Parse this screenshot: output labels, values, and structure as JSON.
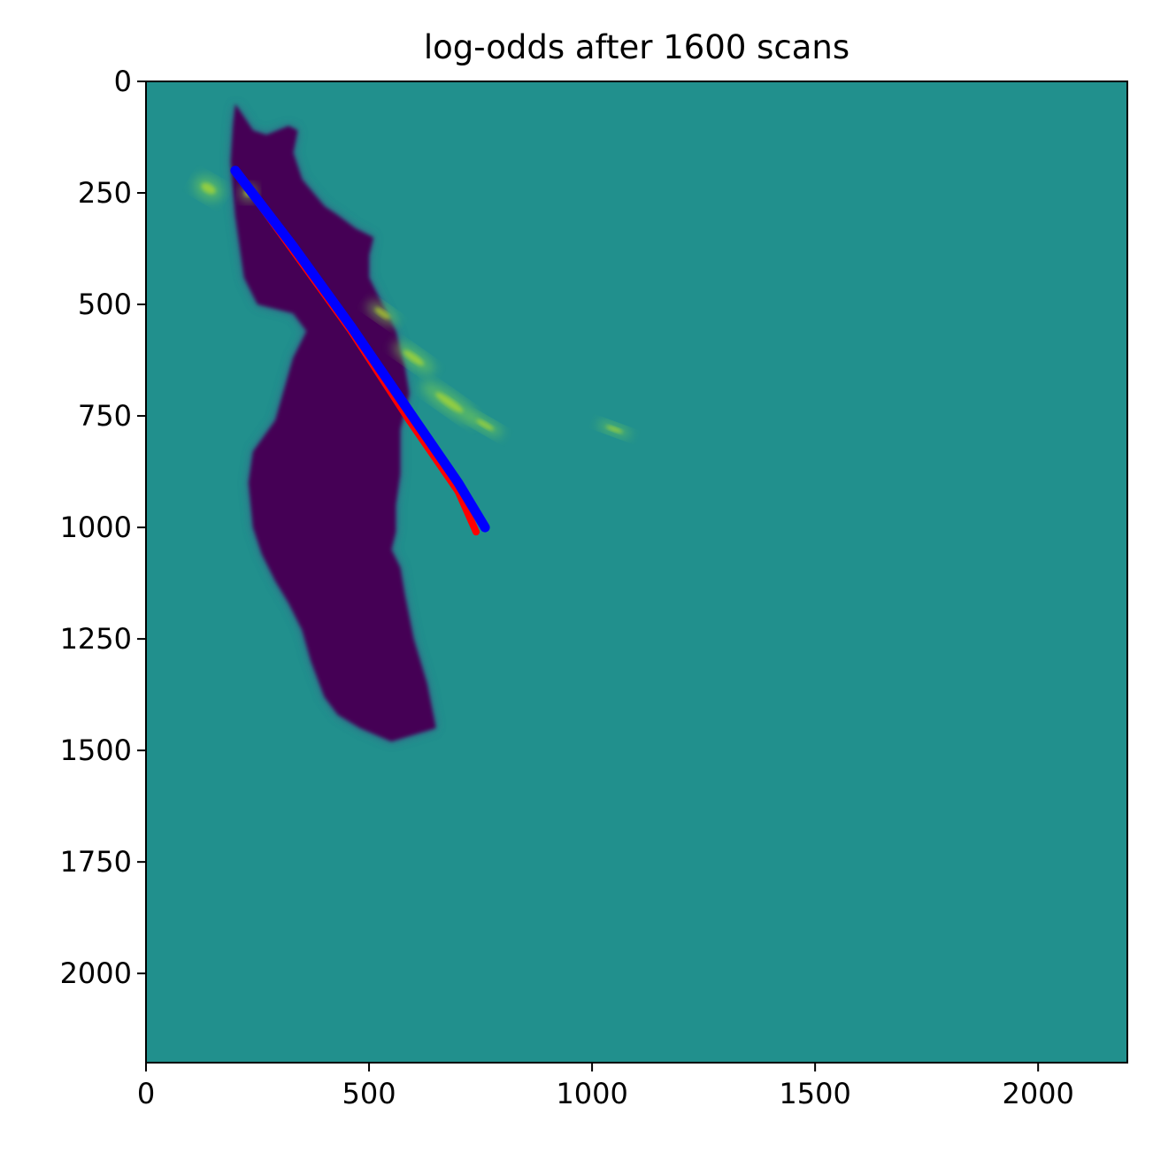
{
  "chart_data": {
    "type": "heatmap",
    "title": "log-odds after 1600 scans",
    "xlabel": "",
    "ylabel": "",
    "xlim": [
      0,
      2200
    ],
    "ylim": [
      2200,
      0
    ],
    "y_axis_inverted": true,
    "x_ticks": [
      0,
      500,
      1000,
      1500,
      2000
    ],
    "y_ticks": [
      0,
      250,
      500,
      750,
      1000,
      1250,
      1500,
      1750,
      2000
    ],
    "colormap": "viridis",
    "grid": false,
    "legend": "none",
    "colors": {
      "unknown": "#21908d",
      "free": "#440154",
      "free_edge": "#3b5288",
      "occupied": "#7ad151",
      "occupied_strong": "#bddf26",
      "path_estimated": "#0000ff",
      "path_reference": "#ff0000"
    },
    "regions": {
      "free_space": [
        [
          200,
          50
        ],
        [
          240,
          110
        ],
        [
          270,
          120
        ],
        [
          320,
          100
        ],
        [
          340,
          110
        ],
        [
          330,
          160
        ],
        [
          350,
          220
        ],
        [
          400,
          280
        ],
        [
          430,
          300
        ],
        [
          470,
          330
        ],
        [
          510,
          350
        ],
        [
          500,
          390
        ],
        [
          500,
          440
        ],
        [
          520,
          480
        ],
        [
          540,
          520
        ],
        [
          560,
          560
        ],
        [
          580,
          640
        ],
        [
          590,
          700
        ],
        [
          570,
          780
        ],
        [
          570,
          880
        ],
        [
          560,
          950
        ],
        [
          560,
          1010
        ],
        [
          550,
          1050
        ],
        [
          570,
          1090
        ],
        [
          580,
          1150
        ],
        [
          600,
          1250
        ],
        [
          630,
          1350
        ],
        [
          650,
          1450
        ],
        [
          550,
          1480
        ],
        [
          480,
          1450
        ],
        [
          430,
          1420
        ],
        [
          400,
          1380
        ],
        [
          370,
          1300
        ],
        [
          350,
          1230
        ],
        [
          320,
          1170
        ],
        [
          290,
          1120
        ],
        [
          260,
          1060
        ],
        [
          240,
          1000
        ],
        [
          230,
          900
        ],
        [
          240,
          830
        ],
        [
          290,
          760
        ],
        [
          330,
          620
        ],
        [
          360,
          560
        ],
        [
          330,
          520
        ],
        [
          250,
          500
        ],
        [
          220,
          440
        ],
        [
          200,
          300
        ],
        [
          190,
          180
        ],
        [
          195,
          100
        ]
      ],
      "occupied_patches": [
        {
          "x": 530,
          "y": 520,
          "rx": 40,
          "ry": 18,
          "angle": 35
        },
        {
          "x": 600,
          "y": 620,
          "rx": 55,
          "ry": 20,
          "angle": 35
        },
        {
          "x": 680,
          "y": 720,
          "rx": 75,
          "ry": 22,
          "angle": 35
        },
        {
          "x": 760,
          "y": 770,
          "rx": 45,
          "ry": 15,
          "angle": 30
        },
        {
          "x": 1050,
          "y": 780,
          "rx": 40,
          "ry": 12,
          "angle": 20
        },
        {
          "x": 140,
          "y": 240,
          "rx": 35,
          "ry": 25,
          "angle": 30
        },
        {
          "x": 230,
          "y": 250,
          "rx": 20,
          "ry": 20,
          "angle": 0
        }
      ]
    },
    "series": [
      {
        "values": [
          [
            200,
            200
          ],
          [
            330,
            380
          ],
          [
            460,
            560
          ],
          [
            590,
            760
          ],
          [
            700,
            920
          ],
          [
            740,
            1010
          ]
        ],
        "color": "#ff0000"
      },
      {
        "values": [
          [
            200,
            200
          ],
          [
            330,
            370
          ],
          [
            460,
            550
          ],
          [
            590,
            740
          ],
          [
            700,
            900
          ],
          [
            760,
            1000
          ]
        ],
        "color": "#0000ff"
      }
    ]
  }
}
